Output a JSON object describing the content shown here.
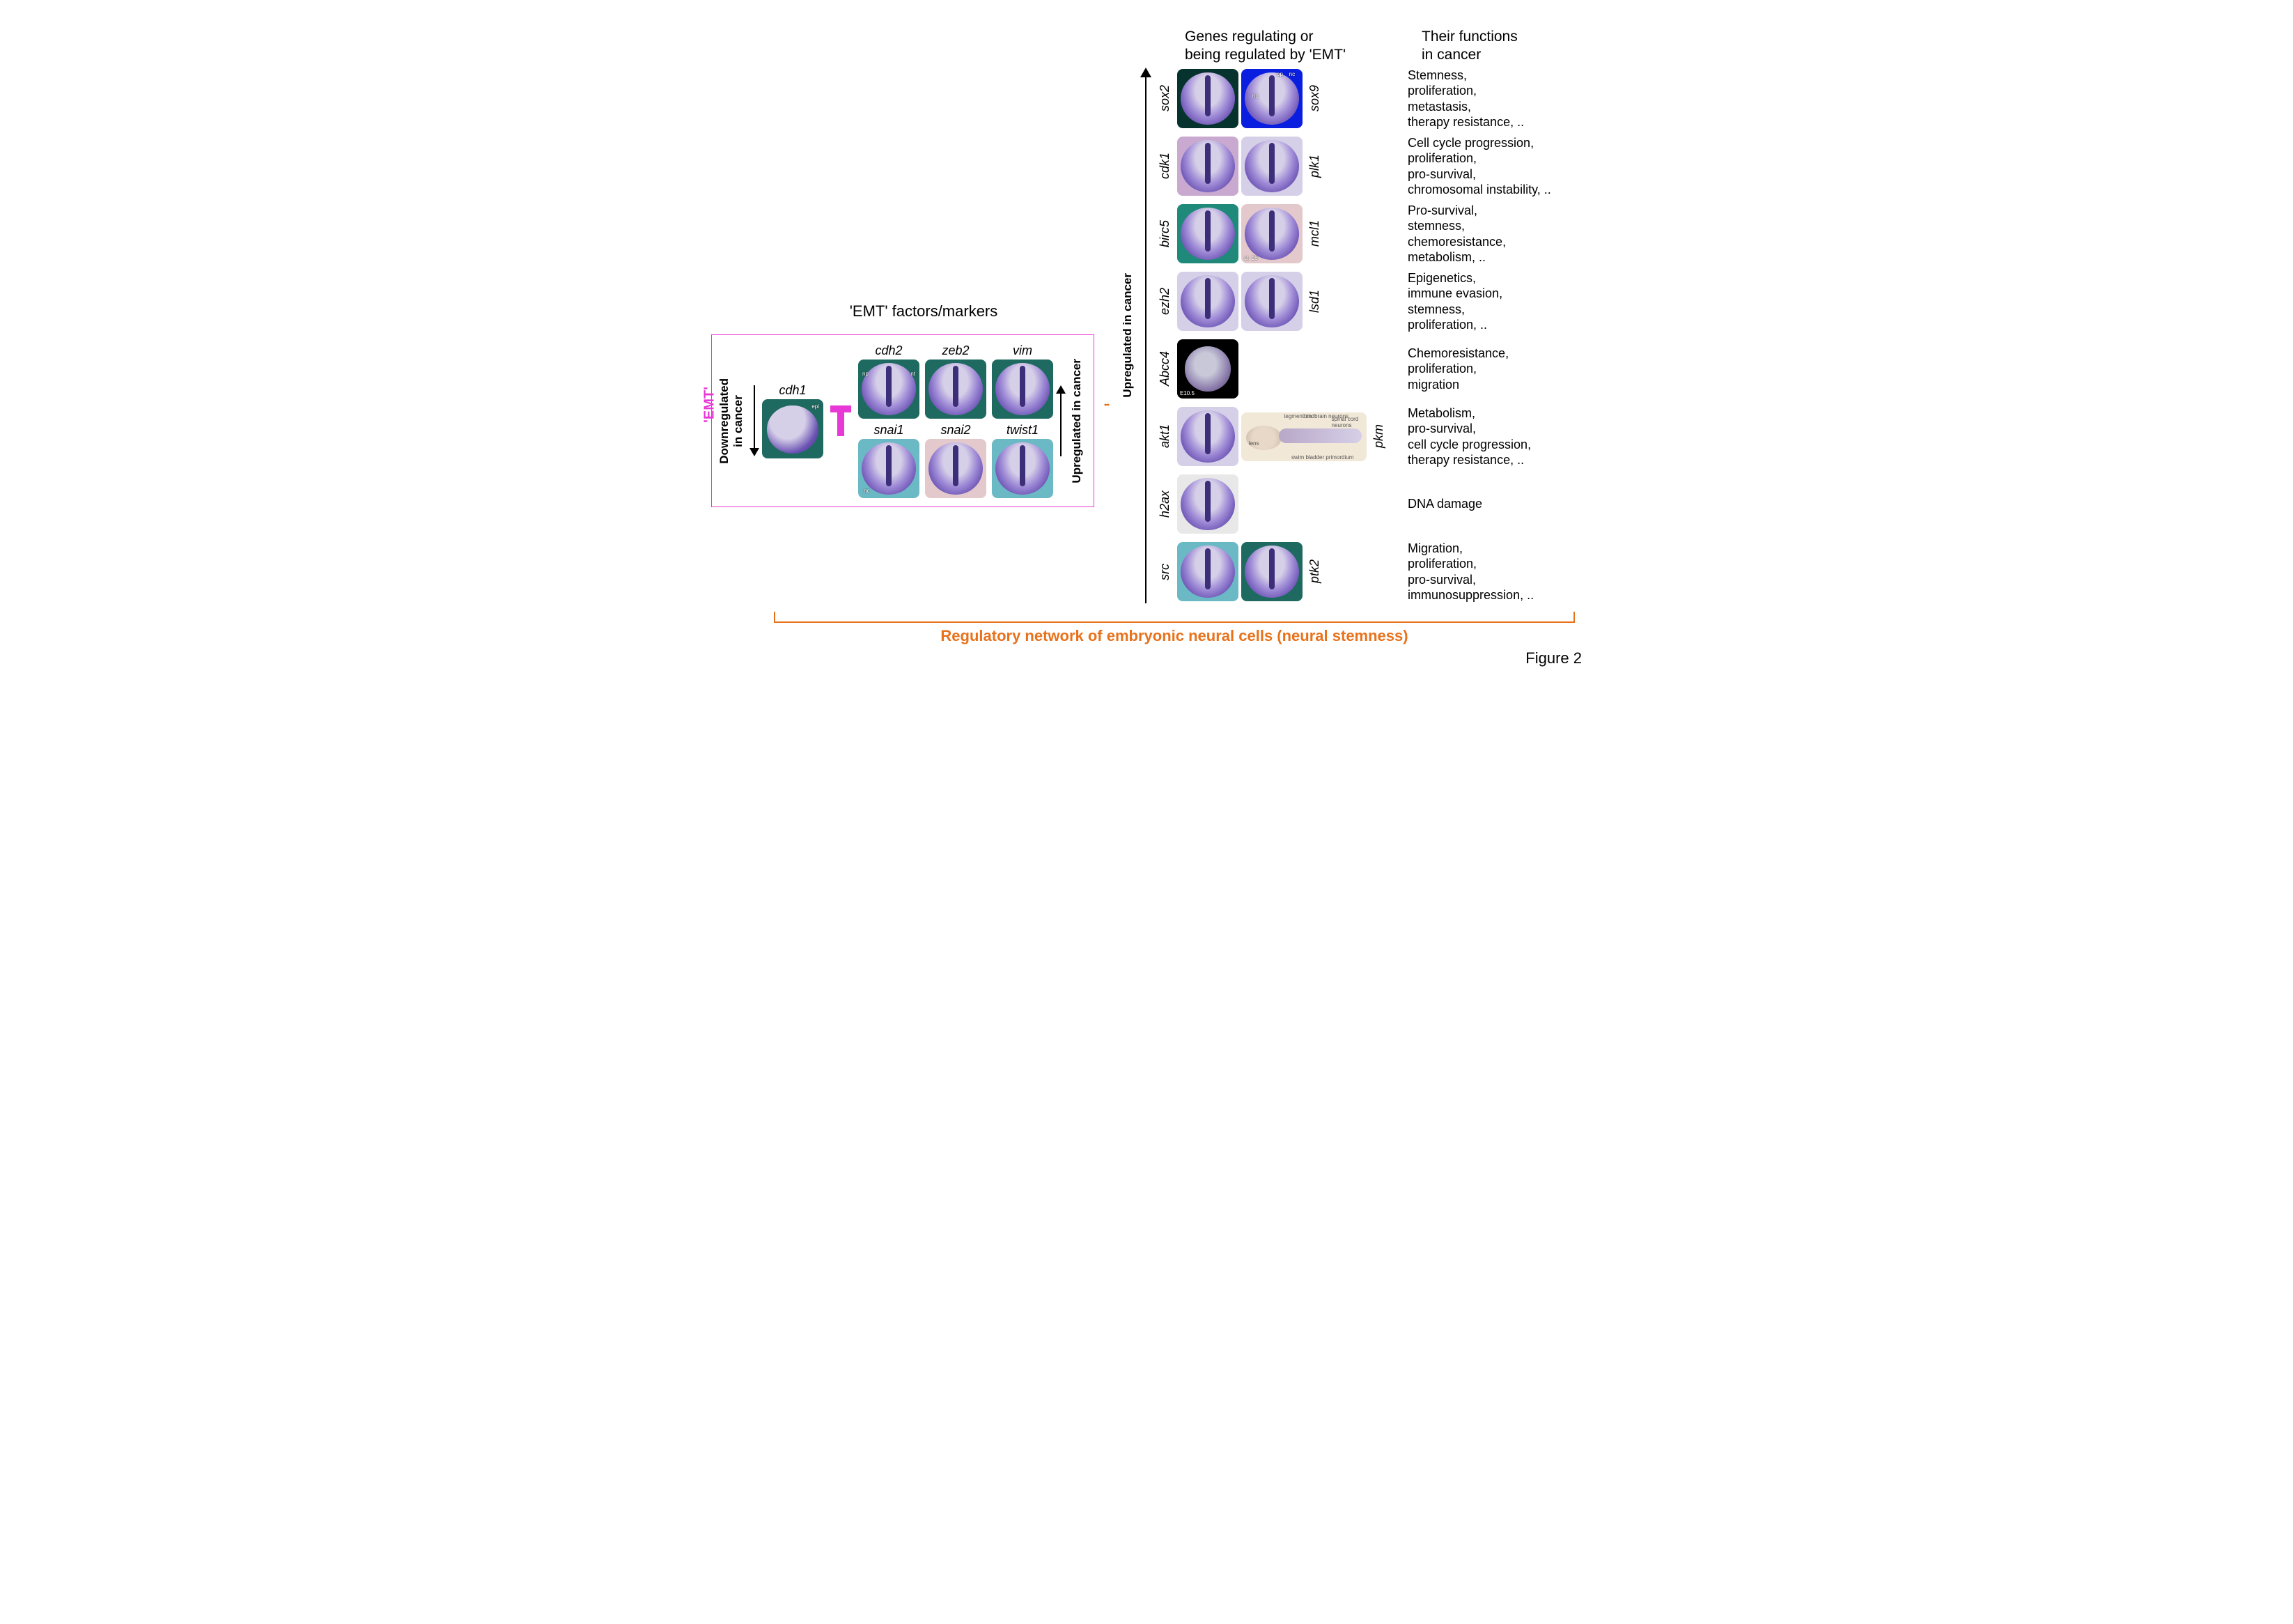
{
  "colors": {
    "magenta": "#e839d6",
    "orange": "#e8721c",
    "black": "#000000",
    "white": "#ffffff",
    "embryo_purple_dark": "#3d2e7a",
    "embryo_purple_mid": "#6a52b3",
    "embryo_purple_light": "#9e8ad6",
    "embryo_body": "#d6cfe8",
    "embryo_body_pink": "#e3c9cc",
    "bg_teal": "#1f6a60",
    "bg_cyan": "#6bb9c4",
    "bg_blue": "#0a1ee0",
    "bg_black": "#000000",
    "bg_cream": "#f2e8d8"
  },
  "emt": {
    "section_title": "'EMT' factors/markers",
    "side_label": "'EMT'",
    "down_label": "Downregulated\nin cancer",
    "up_label": "Upregulated in cancer",
    "cdh1": "cdh1",
    "epi_anno": "epi",
    "grid": [
      {
        "gene": "cdh2",
        "bg": "#1f6a60",
        "anno_l": "np",
        "anno_r": "nt"
      },
      {
        "gene": "zeb2",
        "bg": "#1f6a60"
      },
      {
        "gene": "vim",
        "bg": "#1f6a60"
      },
      {
        "gene": "snai1",
        "bg": "#6bb9c4",
        "anno_b": "nc"
      },
      {
        "gene": "snai2",
        "bg": "#e3c9cc"
      },
      {
        "gene": "twist1",
        "bg": "#6bb9c4"
      }
    ]
  },
  "right": {
    "header_genes": "Genes regulating or\nbeing regulated by 'EMT'",
    "header_funcs": "Their functions\nin cancer",
    "up_label": "Upregulated in cancer",
    "rows": [
      {
        "left_gene": "sox2",
        "left_bg": "#07332e",
        "right_gene": "sox9",
        "right_bg": "#0a1ee0",
        "right_annos": [
          "op",
          "nc",
          "np"
        ],
        "func": "Stemness,\nproliferation,\nmetastasis,\ntherapy resistance, .."
      },
      {
        "left_gene": "cdk1",
        "left_bg": "#c9a9cf",
        "right_gene": "plk1",
        "right_bg": "#d6cfe8",
        "func": "Cell cycle progression,\nproliferation,\npro-survival,\nchromosomal instability, .."
      },
      {
        "left_gene": "birc5",
        "left_bg": "#1f8a7a",
        "right_gene": "mcl1",
        "right_bg": "#e3c9cc",
        "right_note": "st. 16",
        "func": "Pro-survival,\nstemness,\nchemoresistance,\nmetabolism, .."
      },
      {
        "left_gene": "ezh2",
        "left_bg": "#d6cfe8",
        "right_gene": "lsd1",
        "right_bg": "#d6cfe8",
        "func": "Epigenetics,\nimmune evasion,\nstemness,\nproliferation, .."
      },
      {
        "left_gene": "Abcc4",
        "left_bg": "#000000",
        "left_note": "E10.5",
        "right_gene": "",
        "right_bg": "",
        "func": "Chemoresistance,\nproliferation,\nmigration"
      },
      {
        "left_gene": "akt1",
        "left_bg": "#d6cfe8",
        "left_anno": "np",
        "right_gene": "pkm",
        "right_bg": "#f2e8d8",
        "right_wide": true,
        "right_annos_fish": [
          "tegmentum",
          "lens",
          "hindbrain neurons",
          "spinal cord neurons",
          "swim bladder primordium"
        ],
        "func": "Metabolism,\npro-survival,\ncell cycle progression,\ntherapy resistance, .."
      },
      {
        "left_gene": "h2ax",
        "left_bg": "#e8e8e8",
        "right_gene": "",
        "right_bg": "",
        "func": "DNA damage"
      },
      {
        "left_gene": "src",
        "left_bg": "#6bb9c4",
        "right_gene": "ptk2",
        "right_bg": "#1f6a60",
        "func": "Migration,\nproliferation,\npro-survival,\nimmunosuppression, .."
      }
    ]
  },
  "bottom": {
    "label": "Regulatory network of embryonic neural cells (neural stemness)"
  },
  "figure_label": "Figure 2"
}
